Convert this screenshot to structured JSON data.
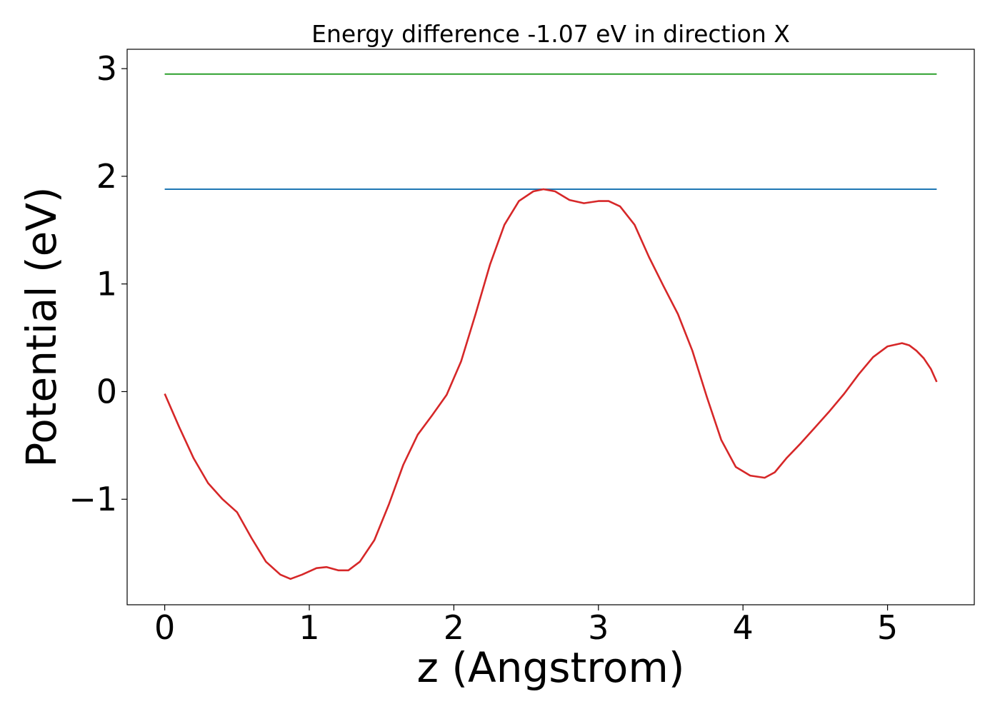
{
  "chart_data": {
    "type": "line",
    "title": "Energy difference -1.07 eV in direction X",
    "xlabel": "z (Angstrom)",
    "ylabel": "Potential (eV)",
    "xlim": [
      -0.26,
      5.6
    ],
    "ylim": [
      -1.98,
      3.18
    ],
    "x_ticks": [
      {
        "value": 0,
        "label": "0"
      },
      {
        "value": 1,
        "label": "1"
      },
      {
        "value": 2,
        "label": "2"
      },
      {
        "value": 3,
        "label": "3"
      },
      {
        "value": 4,
        "label": "4"
      },
      {
        "value": 5,
        "label": "5"
      }
    ],
    "y_ticks": [
      {
        "value": -1,
        "label": "−1"
      },
      {
        "value": 0,
        "label": "0"
      },
      {
        "value": 1,
        "label": "1"
      },
      {
        "value": 2,
        "label": "2"
      },
      {
        "value": 3,
        "label": "3"
      }
    ],
    "grid": false,
    "series": [
      {
        "color": "#2ca02c",
        "x": [
          0,
          5.34
        ],
        "y": [
          2.95,
          2.95
        ]
      },
      {
        "color": "#1f77b4",
        "x": [
          0,
          5.34
        ],
        "y": [
          1.88,
          1.88
        ]
      },
      {
        "color": "#d62728",
        "x": [
          0,
          0.1,
          0.2,
          0.3,
          0.4,
          0.5,
          0.6,
          0.7,
          0.8,
          0.87,
          0.95,
          1.05,
          1.12,
          1.2,
          1.27,
          1.35,
          1.45,
          1.55,
          1.65,
          1.75,
          1.85,
          1.95,
          2.05,
          2.15,
          2.25,
          2.35,
          2.45,
          2.55,
          2.62,
          2.7,
          2.8,
          2.9,
          3.0,
          3.07,
          3.15,
          3.25,
          3.35,
          3.45,
          3.55,
          3.65,
          3.75,
          3.85,
          3.95,
          4.05,
          4.15,
          4.22,
          4.3,
          4.4,
          4.5,
          4.6,
          4.7,
          4.8,
          4.9,
          5.0,
          5.1,
          5.15,
          5.2,
          5.25,
          5.3,
          5.34
        ],
        "y": [
          -0.02,
          -0.33,
          -0.62,
          -0.85,
          -1.0,
          -1.12,
          -1.36,
          -1.58,
          -1.7,
          -1.74,
          -1.7,
          -1.64,
          -1.63,
          -1.66,
          -1.66,
          -1.58,
          -1.38,
          -1.05,
          -0.68,
          -0.4,
          -0.22,
          -0.03,
          0.28,
          0.72,
          1.18,
          1.55,
          1.77,
          1.86,
          1.88,
          1.86,
          1.78,
          1.75,
          1.77,
          1.77,
          1.72,
          1.55,
          1.25,
          0.98,
          0.72,
          0.38,
          -0.05,
          -0.45,
          -0.7,
          -0.78,
          -0.8,
          -0.75,
          -0.62,
          -0.48,
          -0.33,
          -0.18,
          -0.02,
          0.16,
          0.32,
          0.42,
          0.45,
          0.43,
          0.38,
          0.31,
          0.21,
          0.09
        ]
      }
    ]
  }
}
